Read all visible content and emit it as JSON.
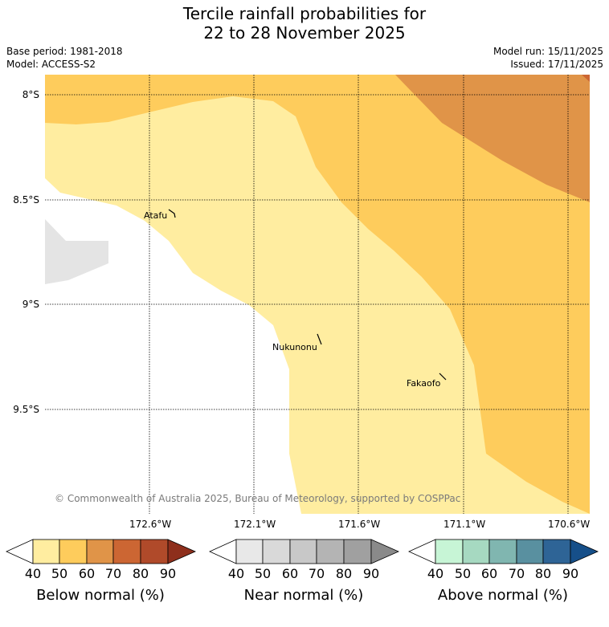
{
  "title": {
    "line1": "Tercile rainfall probabilities for",
    "line2": "22 to 28 November 2025"
  },
  "meta": {
    "base_period": "Base period: 1981-2018",
    "model": "Model: ACCESS-S2",
    "model_run": "Model run: 15/11/2025",
    "issued": "Issued: 17/11/2025"
  },
  "map": {
    "latitude_labels": [
      "8°S",
      "8.5°S",
      "9°S",
      "9.5°S"
    ],
    "longitude_labels": [
      "172.6°W",
      "172.1°W",
      "171.6°W",
      "171.1°W",
      "170.6°W"
    ],
    "places": [
      "Atafu",
      "Nukunonu",
      "Fakaofo"
    ],
    "copyright": "© Commonwealth of Australia 2025, Bureau of Meteorology, supported by COSPPac"
  },
  "legends": [
    {
      "label": "Below normal (%)",
      "ticks": [
        "40",
        "50",
        "60",
        "70",
        "80",
        "90"
      ],
      "colors": [
        "#ffffff",
        "#ffeda0",
        "#fecc5c",
        "#e09448",
        "#cc6633",
        "#b04a2a",
        "#8e2f1c"
      ]
    },
    {
      "label": "Near normal (%)",
      "ticks": [
        "40",
        "50",
        "60",
        "70",
        "80",
        "90"
      ],
      "colors": [
        "#ffffff",
        "#e8e8e8",
        "#d9d9d9",
        "#c8c8c8",
        "#b4b4b4",
        "#a0a0a0",
        "#8a8a8a"
      ]
    },
    {
      "label": "Above normal (%)",
      "ticks": [
        "40",
        "50",
        "60",
        "70",
        "80",
        "90"
      ],
      "colors": [
        "#ffffff",
        "#c7f5d6",
        "#a6d9c1",
        "#80b6b0",
        "#5990a0",
        "#2e6496",
        "#164f89"
      ]
    }
  ],
  "colors": {
    "below_50": "#ffeda0",
    "below_60": "#fecc5c",
    "below_70": "#e09448",
    "near_normal": "#e4e4e4"
  }
}
